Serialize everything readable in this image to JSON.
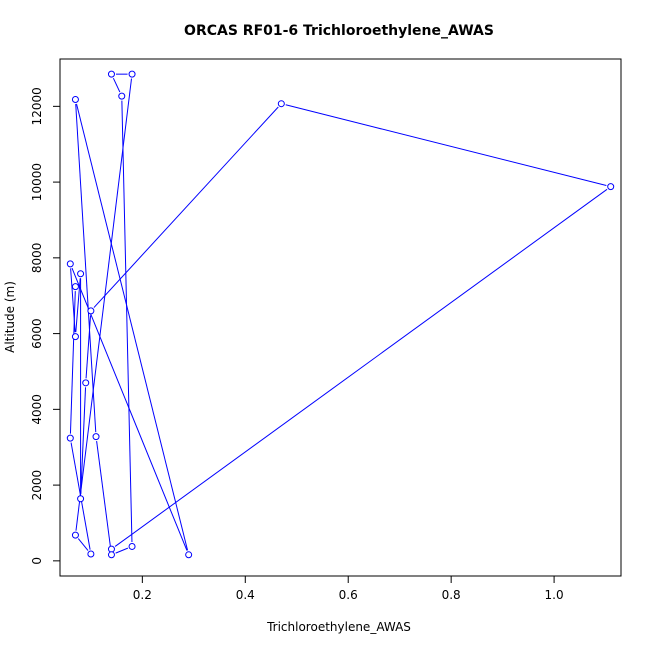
{
  "chart_data": {
    "type": "line",
    "title": "ORCAS RF01-6 Trichloroethylene_AWAS",
    "xlabel": "Trichloroethylene_AWAS",
    "ylabel": "Altitude (m)",
    "xlim": [
      0.04,
      1.13
    ],
    "ylim": [
      -400,
      13250
    ],
    "xticks": [
      0.2,
      0.4,
      0.6,
      0.8,
      1.0
    ],
    "xtick_labels": [
      "0.2",
      "0.4",
      "0.6",
      "0.8",
      "1.0"
    ],
    "yticks": [
      0,
      2000,
      4000,
      6000,
      8000,
      10000,
      12000
    ],
    "ytick_labels": [
      "0",
      "2000",
      "4000",
      "6000",
      "8000",
      "10000",
      "12000"
    ],
    "grid": false,
    "series": [
      {
        "color": "#0000ff",
        "marker": "open-circle",
        "x": [
          0.14,
          1.11,
          0.47,
          0.1,
          0.09,
          0.08,
          0.08,
          0.07,
          0.06,
          0.29,
          0.07,
          0.11,
          0.14,
          0.18,
          0.16,
          0.14,
          0.18,
          0.07,
          0.1,
          0.06,
          0.07
        ],
        "y": [
          310,
          9880,
          12070,
          6600,
          4700,
          1640,
          7580,
          5920,
          7840,
          160,
          12180,
          3280,
          160,
          380,
          12270,
          12850,
          12850,
          680,
          180,
          3240,
          7240
        ]
      }
    ]
  }
}
